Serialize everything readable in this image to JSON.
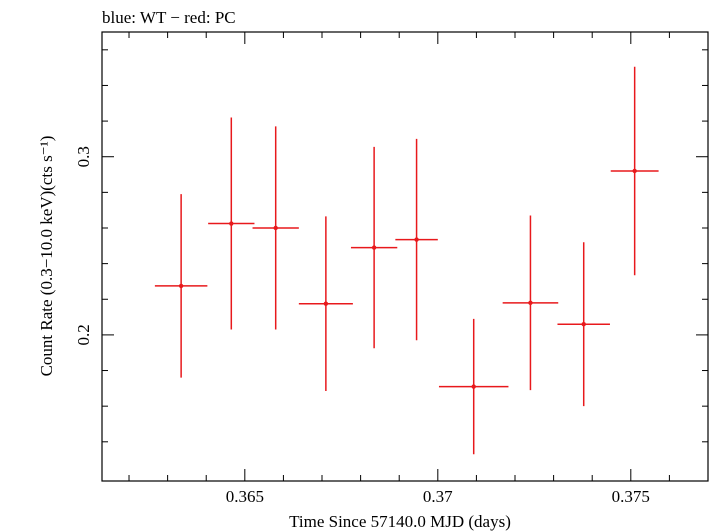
{
  "chart_data": {
    "type": "scatter",
    "title": "blue: WT − red: PC",
    "xlabel": "Time Since 57140.0 MJD (days)",
    "ylabel": "Count Rate (0.3−10.0 keV)(cts s⁻¹)",
    "xlim": [
      0.3613,
      0.377
    ],
    "ylim": [
      0.118,
      0.37
    ],
    "x_ticks": [
      {
        "value": 0.365,
        "label": "0.365"
      },
      {
        "value": 0.37,
        "label": "0.37"
      },
      {
        "value": 0.375,
        "label": "0.375"
      }
    ],
    "y_ticks": [
      {
        "value": 0.2,
        "label": "0.2"
      },
      {
        "value": 0.3,
        "label": "0.3"
      }
    ],
    "grid": false,
    "series": [
      {
        "name": "PC",
        "color": "#e8191c",
        "points": [
          {
            "x": 0.36335,
            "xerr": 0.00068,
            "y": 0.2275,
            "yerr": 0.0515
          },
          {
            "x": 0.36465,
            "xerr": 0.0006,
            "y": 0.2625,
            "yerr": 0.0595
          },
          {
            "x": 0.3658,
            "xerr": 0.0006,
            "y": 0.26,
            "yerr": 0.057
          },
          {
            "x": 0.3671,
            "xerr": 0.0007,
            "y": 0.2175,
            "yerr": 0.049
          },
          {
            "x": 0.36835,
            "xerr": 0.0006,
            "y": 0.249,
            "yerr": 0.0565
          },
          {
            "x": 0.36945,
            "xerr": 0.00055,
            "y": 0.2535,
            "yerr": 0.0565
          },
          {
            "x": 0.37093,
            "xerr": 0.0009,
            "y": 0.171,
            "yerr": 0.038
          },
          {
            "x": 0.3724,
            "xerr": 0.00072,
            "y": 0.218,
            "yerr": 0.049
          },
          {
            "x": 0.37378,
            "xerr": 0.00068,
            "y": 0.206,
            "yerr": 0.046
          },
          {
            "x": 0.3751,
            "xerr": 0.00062,
            "y": 0.292,
            "yerr": 0.0585
          }
        ]
      }
    ]
  }
}
